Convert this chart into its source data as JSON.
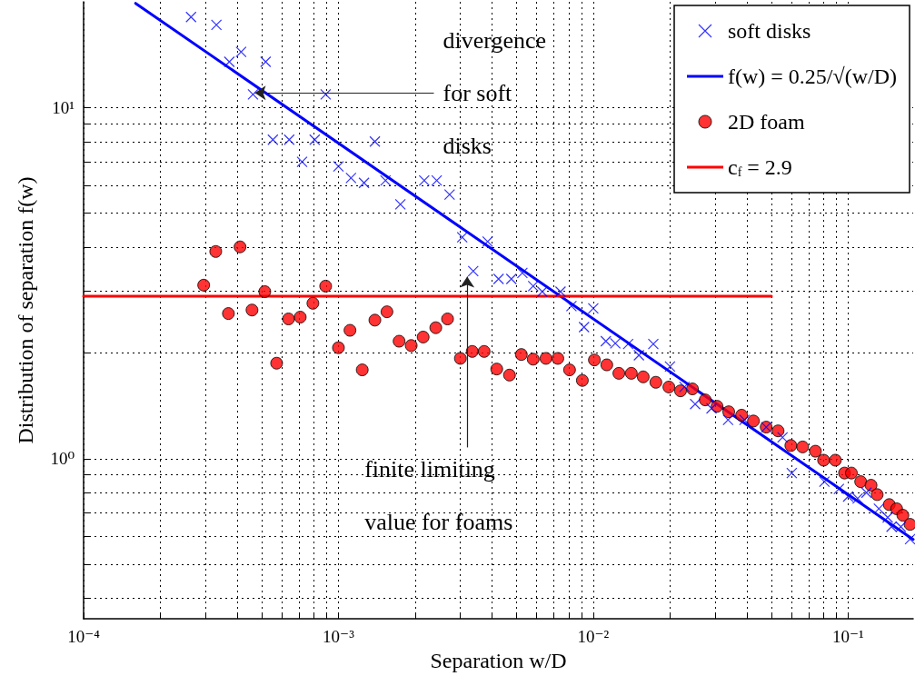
{
  "chart_data": {
    "type": "scatter",
    "xlabel": "Separation w/D",
    "ylabel": "Distribution of separation f(w)",
    "xlim": [
      0.0001,
      0.18
    ],
    "ylim": [
      0.35,
      20
    ],
    "log": "xy",
    "grid": true,
    "legend": "top right",
    "line_style": "solid",
    "xticks": [
      {
        "value": 0.0001,
        "label": "10⁻⁴"
      },
      {
        "value": 0.0002,
        "label": null
      },
      {
        "value": 0.0003,
        "label": null
      },
      {
        "value": 0.0004,
        "label": null
      },
      {
        "value": 0.0005,
        "label": null
      },
      {
        "value": 0.0006,
        "label": null
      },
      {
        "value": 0.0007,
        "label": null
      },
      {
        "value": 0.0008,
        "label": null
      },
      {
        "value": 0.0009,
        "label": null
      },
      {
        "value": 0.001,
        "label": "10⁻³"
      },
      {
        "value": 0.002,
        "label": null
      },
      {
        "value": 0.003,
        "label": null
      },
      {
        "value": 0.004,
        "label": null
      },
      {
        "value": 0.005,
        "label": null
      },
      {
        "value": 0.006,
        "label": null
      },
      {
        "value": 0.007,
        "label": null
      },
      {
        "value": 0.008,
        "label": null
      },
      {
        "value": 0.009,
        "label": null
      },
      {
        "value": 0.01,
        "label": "10⁻²"
      },
      {
        "value": 0.02,
        "label": null
      },
      {
        "value": 0.03,
        "label": null
      },
      {
        "value": 0.04,
        "label": null
      },
      {
        "value": 0.05,
        "label": null
      },
      {
        "value": 0.06,
        "label": null
      },
      {
        "value": 0.07,
        "label": null
      },
      {
        "value": 0.08,
        "label": null
      },
      {
        "value": 0.09,
        "label": null
      },
      {
        "value": 0.1,
        "label": "10⁻¹"
      }
    ],
    "yticks": [
      {
        "value": 0.4,
        "label": null
      },
      {
        "value": 0.5,
        "label": null
      },
      {
        "value": 0.6,
        "label": null
      },
      {
        "value": 0.7,
        "label": null
      },
      {
        "value": 0.8,
        "label": null
      },
      {
        "value": 0.9,
        "label": null
      },
      {
        "value": 1,
        "label": "10⁰"
      },
      {
        "value": 2,
        "label": null
      },
      {
        "value": 3,
        "label": null
      },
      {
        "value": 4,
        "label": null
      },
      {
        "value": 5,
        "label": null
      },
      {
        "value": 6,
        "label": null
      },
      {
        "value": 7,
        "label": null
      },
      {
        "value": 8,
        "label": null
      },
      {
        "value": 9,
        "label": null
      },
      {
        "value": 10,
        "label": "10¹"
      }
    ],
    "annotations": [
      {
        "text": "divergence for soft disks",
        "x": 0.00047,
        "y": 11
      },
      {
        "text": "finite limiting value for foams",
        "x": 0.0032,
        "y": 3.3
      }
    ],
    "series": [
      {
        "name": "soft disks",
        "marker": "cross",
        "color": "#0000ff",
        "x": [
          0.000264,
          0.000332,
          0.000373,
          0.000415,
          0.000462,
          0.000518,
          0.000553,
          0.000641,
          0.00072,
          0.000807,
          0.000891,
          0.001,
          0.00112,
          0.00126,
          0.00139,
          0.00153,
          0.00175,
          0.00217,
          0.00243,
          0.00273,
          0.00306,
          0.00338,
          0.00385,
          0.00425,
          0.00477,
          0.00527,
          0.00581,
          0.00631,
          0.00744,
          0.00821,
          0.0092,
          0.01,
          0.0112,
          0.0122,
          0.0137,
          0.0151,
          0.0172,
          0.02,
          0.0228,
          0.0251,
          0.0291,
          0.0338,
          0.0392,
          0.0477,
          0.0553,
          0.0601,
          0.0807,
          0.092,
          0.1,
          0.109,
          0.118,
          0.132,
          0.143,
          0.148,
          0.161,
          0.175
        ],
        "values": [
          18.1,
          17.2,
          13.5,
          14.4,
          10.9,
          13.5,
          8.1,
          8.1,
          7.0,
          8.1,
          10.9,
          6.8,
          6.3,
          6.1,
          8.0,
          6.2,
          5.3,
          6.2,
          6.2,
          5.65,
          4.27,
          3.42,
          4.15,
          3.25,
          3.25,
          3.38,
          3.1,
          2.99,
          2.99,
          2.72,
          2.37,
          2.68,
          2.16,
          2.13,
          2.12,
          1.97,
          2.12,
          1.83,
          1.6,
          1.43,
          1.39,
          1.29,
          1.29,
          1.23,
          1.15,
          0.91,
          0.86,
          0.82,
          0.78,
          0.77,
          0.8,
          0.72,
          0.68,
          0.64,
          0.64,
          0.59
        ]
      },
      {
        "name": "f(w) = 0.25/√(w/D)",
        "type": "line",
        "marker": "none",
        "color": "#0000ff",
        "x": [
          0.00016,
          0.18
        ],
        "values": [
          19.8,
          0.589
        ]
      },
      {
        "name": "2D foam",
        "marker": "circle",
        "color": "#ff0000",
        "x": [
          0.000296,
          0.00033,
          0.00037,
          0.000411,
          0.000458,
          0.000514,
          0.000572,
          0.000637,
          0.000708,
          0.000794,
          0.000891,
          0.001,
          0.00111,
          0.00124,
          0.00139,
          0.00155,
          0.00173,
          0.00193,
          0.00215,
          0.00241,
          0.00268,
          0.00301,
          0.00335,
          0.00373,
          0.00418,
          0.00469,
          0.00522,
          0.00581,
          0.00652,
          0.00726,
          0.00807,
          0.00906,
          0.0101,
          0.0113,
          0.0126,
          0.0141,
          0.0157,
          0.0176,
          0.0198,
          0.022,
          0.0245,
          0.0275,
          0.0306,
          0.034,
          0.0382,
          0.0425,
          0.0477,
          0.0531,
          0.0596,
          0.0663,
          0.0744,
          0.0801,
          0.0891,
          0.0968,
          0.103,
          0.112,
          0.123,
          0.13,
          0.145,
          0.155,
          0.164,
          0.175
        ],
        "values": [
          3.12,
          3.89,
          2.59,
          4.01,
          2.65,
          2.99,
          1.87,
          2.5,
          2.53,
          2.77,
          3.1,
          2.07,
          2.32,
          1.79,
          2.48,
          2.62,
          2.16,
          2.1,
          2.22,
          2.36,
          2.5,
          1.93,
          2.02,
          2.02,
          1.8,
          1.73,
          1.98,
          1.92,
          1.93,
          1.93,
          1.79,
          1.67,
          1.91,
          1.85,
          1.75,
          1.75,
          1.71,
          1.65,
          1.6,
          1.56,
          1.58,
          1.47,
          1.41,
          1.36,
          1.33,
          1.28,
          1.23,
          1.2,
          1.09,
          1.08,
          1.05,
          0.99,
          0.99,
          0.91,
          0.91,
          0.86,
          0.84,
          0.79,
          0.74,
          0.72,
          0.69,
          0.65
        ]
      },
      {
        "name": "c$_{f}$ = 2.9",
        "type": "line",
        "marker": "none",
        "color": "#ff0000",
        "x": [
          0.0001,
          0.05
        ],
        "values": [
          2.9,
          2.9
        ]
      }
    ]
  }
}
